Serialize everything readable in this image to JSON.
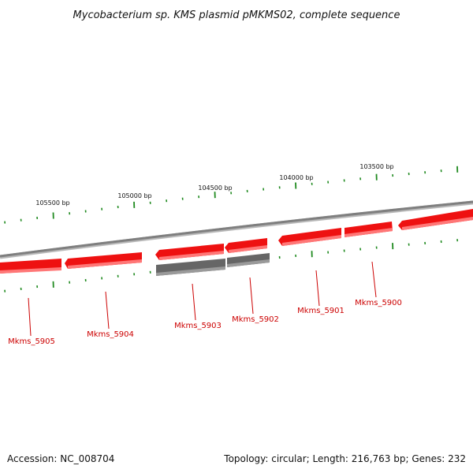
{
  "title": "Mycobacterium sp. KMS plasmid pMKMS02, complete sequence",
  "footer": {
    "accession": "Accession: NC_008704",
    "summary": "Topology: circular; Length: 216,763 bp; Genes: 232"
  },
  "colors": {
    "forward_gene": "#ee1111",
    "forward_gene_highlight": "#ff6666",
    "reverse_gene": "#666666",
    "reverse_gene_highlight": "#9a9a9a",
    "backbone": "#8a8a8a",
    "tick": "#1f8a1f",
    "gene_label": "#cc0000"
  },
  "scale_labels": [
    "105500 bp",
    "105000 bp",
    "104500 bp",
    "104000 bp",
    "103500 bp"
  ],
  "genes": [
    {
      "name": "Mkms_5905",
      "strand": "forward"
    },
    {
      "name": "Mkms_5904",
      "strand": "forward"
    },
    {
      "name": "Mkms_5903",
      "strand": "forward"
    },
    {
      "name": "Mkms_5902",
      "strand": "forward"
    },
    {
      "name": "Mkms_5901",
      "strand": "forward"
    },
    {
      "name": "Mkms_5900",
      "strand": "forward"
    }
  ]
}
